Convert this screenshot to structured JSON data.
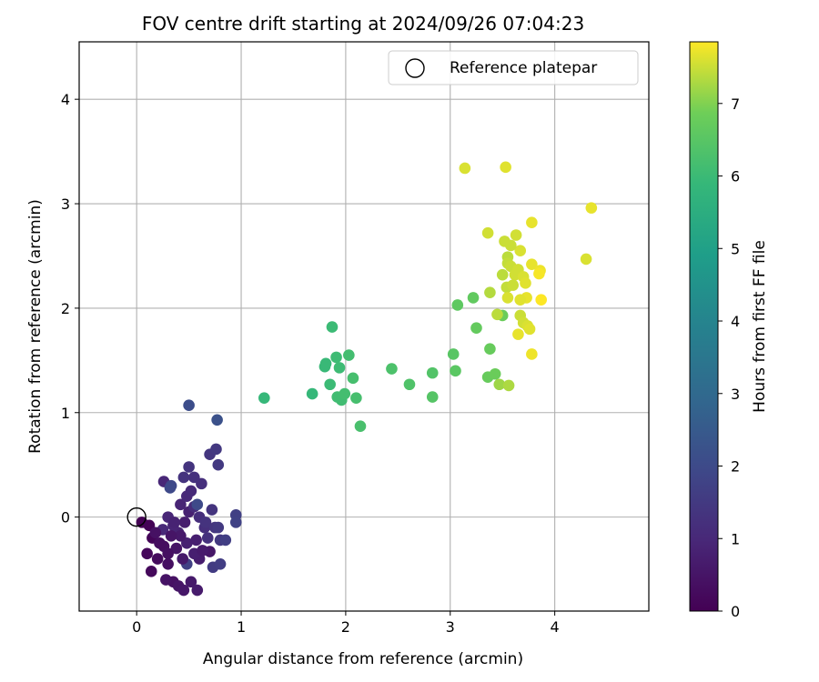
{
  "chart_data": {
    "type": "scatter",
    "title": "FOV centre drift starting at 2024/09/26 07:04:23",
    "xlabel": "Angular distance from reference (arcmin)",
    "ylabel": "Rotation from reference (arcmin)",
    "xlim": [
      -0.55,
      4.9
    ],
    "ylim": [
      -0.9,
      4.55
    ],
    "xticks": [
      0,
      1,
      2,
      3,
      4
    ],
    "yticks": [
      0,
      1,
      2,
      3,
      4
    ],
    "grid": true,
    "legend": {
      "position": "top-right",
      "entries": [
        "Reference platepar"
      ]
    },
    "reference_point": {
      "x": 0,
      "y": 0,
      "label": "Reference platepar"
    },
    "colorbar": {
      "label": "Hours from first FF file",
      "min": 0,
      "max": 7.85,
      "ticks": [
        0,
        1,
        2,
        3,
        4,
        5,
        6,
        7
      ],
      "colormap": "viridis"
    },
    "points": [
      [
        0.05,
        -0.05,
        0.0
      ],
      [
        0.12,
        -0.08,
        0.05
      ],
      [
        0.15,
        -0.2,
        0.1
      ],
      [
        0.1,
        -0.35,
        0.15
      ],
      [
        0.14,
        -0.52,
        0.2
      ],
      [
        0.2,
        -0.4,
        0.25
      ],
      [
        0.26,
        -0.28,
        0.3
      ],
      [
        0.3,
        -0.45,
        0.35
      ],
      [
        0.35,
        -0.62,
        0.4
      ],
      [
        0.28,
        -0.6,
        0.45
      ],
      [
        0.4,
        -0.66,
        0.5
      ],
      [
        0.45,
        -0.7,
        0.55
      ],
      [
        0.52,
        -0.62,
        0.6
      ],
      [
        0.58,
        -0.7,
        0.65
      ],
      [
        0.6,
        -0.4,
        0.7
      ],
      [
        0.55,
        -0.35,
        0.75
      ],
      [
        0.48,
        -0.25,
        0.8
      ],
      [
        0.4,
        -0.15,
        0.85
      ],
      [
        0.35,
        -0.08,
        0.9
      ],
      [
        0.3,
        0.0,
        0.95
      ],
      [
        0.25,
        -0.12,
        1.0
      ],
      [
        0.22,
        -0.25,
        0.3
      ],
      [
        0.18,
        -0.15,
        0.4
      ],
      [
        0.38,
        -0.3,
        0.5
      ],
      [
        0.42,
        -0.18,
        0.6
      ],
      [
        0.46,
        -0.05,
        0.7
      ],
      [
        0.5,
        0.05,
        0.8
      ],
      [
        0.42,
        0.12,
        0.9
      ],
      [
        0.48,
        0.2,
        1.0
      ],
      [
        0.52,
        0.25,
        1.05
      ],
      [
        0.55,
        0.1,
        1.1
      ],
      [
        0.6,
        0.0,
        1.15
      ],
      [
        0.65,
        -0.1,
        1.2
      ],
      [
        0.68,
        -0.2,
        1.25
      ],
      [
        0.7,
        -0.33,
        0.55
      ],
      [
        0.63,
        -0.32,
        0.65
      ],
      [
        0.57,
        -0.22,
        0.75
      ],
      [
        0.66,
        -0.05,
        1.3
      ],
      [
        0.72,
        0.07,
        1.35
      ],
      [
        0.75,
        -0.1,
        1.4
      ],
      [
        0.8,
        -0.22,
        1.45
      ],
      [
        0.78,
        -0.1,
        1.5
      ],
      [
        0.73,
        -0.48,
        1.55
      ],
      [
        0.8,
        -0.45,
        1.6
      ],
      [
        0.85,
        -0.22,
        1.65
      ],
      [
        0.95,
        0.02,
        1.7
      ],
      [
        0.95,
        -0.05,
        1.75
      ],
      [
        0.62,
        0.32,
        1.2
      ],
      [
        0.55,
        0.38,
        1.25
      ],
      [
        0.45,
        0.38,
        1.3
      ],
      [
        0.5,
        0.48,
        1.35
      ],
      [
        0.7,
        0.6,
        1.4
      ],
      [
        0.76,
        0.65,
        1.45
      ],
      [
        0.78,
        0.5,
        1.5
      ],
      [
        0.26,
        0.34,
        0.95
      ],
      [
        0.33,
        0.3,
        1.9
      ],
      [
        0.32,
        0.28,
        1.95
      ],
      [
        0.58,
        0.12,
        2.0
      ],
      [
        0.48,
        -0.45,
        1.7
      ],
      [
        0.77,
        0.93,
        2.2
      ],
      [
        0.5,
        1.07,
        2.1
      ],
      [
        0.36,
        -0.05,
        0.85
      ],
      [
        0.44,
        -0.4,
        0.6
      ],
      [
        0.3,
        -0.35,
        0.35
      ],
      [
        0.33,
        -0.18,
        0.5
      ],
      [
        1.22,
        1.14,
        5.9
      ],
      [
        1.68,
        1.18,
        5.9
      ],
      [
        1.8,
        1.44,
        5.95
      ],
      [
        1.81,
        1.47,
        5.95
      ],
      [
        1.85,
        1.27,
        6.0
      ],
      [
        1.87,
        1.82,
        6.0
      ],
      [
        1.91,
        1.53,
        6.05
      ],
      [
        1.94,
        1.43,
        6.05
      ],
      [
        1.92,
        1.15,
        6.1
      ],
      [
        1.96,
        1.12,
        6.1
      ],
      [
        1.99,
        1.18,
        6.15
      ],
      [
        2.03,
        1.55,
        6.15
      ],
      [
        2.07,
        1.33,
        6.2
      ],
      [
        2.1,
        1.14,
        6.2
      ],
      [
        2.14,
        0.87,
        6.25
      ],
      [
        2.44,
        1.42,
        6.3
      ],
      [
        2.61,
        1.27,
        6.35
      ],
      [
        2.83,
        1.38,
        6.4
      ],
      [
        2.83,
        1.15,
        6.45
      ],
      [
        3.03,
        1.56,
        6.5
      ],
      [
        3.05,
        1.4,
        6.55
      ],
      [
        3.07,
        2.03,
        6.6
      ],
      [
        3.22,
        2.1,
        6.65
      ],
      [
        3.25,
        1.81,
        6.7
      ],
      [
        3.36,
        1.34,
        6.75
      ],
      [
        3.38,
        1.61,
        6.75
      ],
      [
        3.43,
        1.37,
        6.8
      ],
      [
        3.5,
        1.93,
        6.8
      ],
      [
        3.47,
        1.27,
        7.2
      ],
      [
        3.56,
        1.26,
        7.3
      ],
      [
        3.14,
        3.34,
        7.6
      ],
      [
        3.53,
        3.35,
        7.65
      ],
      [
        3.36,
        2.72,
        7.55
      ],
      [
        3.52,
        2.64,
        7.5
      ],
      [
        3.63,
        2.7,
        7.55
      ],
      [
        3.67,
        2.55,
        7.6
      ],
      [
        3.78,
        2.82,
        7.7
      ],
      [
        4.35,
        2.96,
        7.7
      ],
      [
        4.3,
        2.47,
        7.6
      ],
      [
        3.55,
        2.49,
        7.4
      ],
      [
        3.55,
        2.43,
        7.45
      ],
      [
        3.58,
        2.4,
        7.5
      ],
      [
        3.62,
        2.32,
        7.55
      ],
      [
        3.5,
        2.32,
        7.4
      ],
      [
        3.54,
        2.2,
        7.45
      ],
      [
        3.6,
        2.22,
        7.5
      ],
      [
        3.65,
        2.37,
        7.55
      ],
      [
        3.7,
        2.3,
        7.6
      ],
      [
        3.72,
        2.24,
        7.65
      ],
      [
        3.73,
        2.1,
        7.7
      ],
      [
        3.67,
        2.08,
        7.65
      ],
      [
        3.55,
        2.1,
        7.6
      ],
      [
        3.38,
        2.15,
        7.35
      ],
      [
        3.45,
        1.94,
        7.4
      ],
      [
        3.67,
        1.93,
        7.5
      ],
      [
        3.7,
        1.86,
        7.55
      ],
      [
        3.74,
        1.83,
        7.6
      ],
      [
        3.76,
        1.8,
        7.65
      ],
      [
        3.65,
        1.75,
        7.7
      ],
      [
        3.78,
        1.56,
        7.75
      ],
      [
        3.78,
        2.42,
        7.7
      ],
      [
        3.86,
        2.36,
        7.75
      ],
      [
        3.85,
        2.33,
        7.8
      ],
      [
        3.87,
        2.08,
        7.85
      ],
      [
        3.58,
        2.6,
        7.5
      ]
    ]
  }
}
